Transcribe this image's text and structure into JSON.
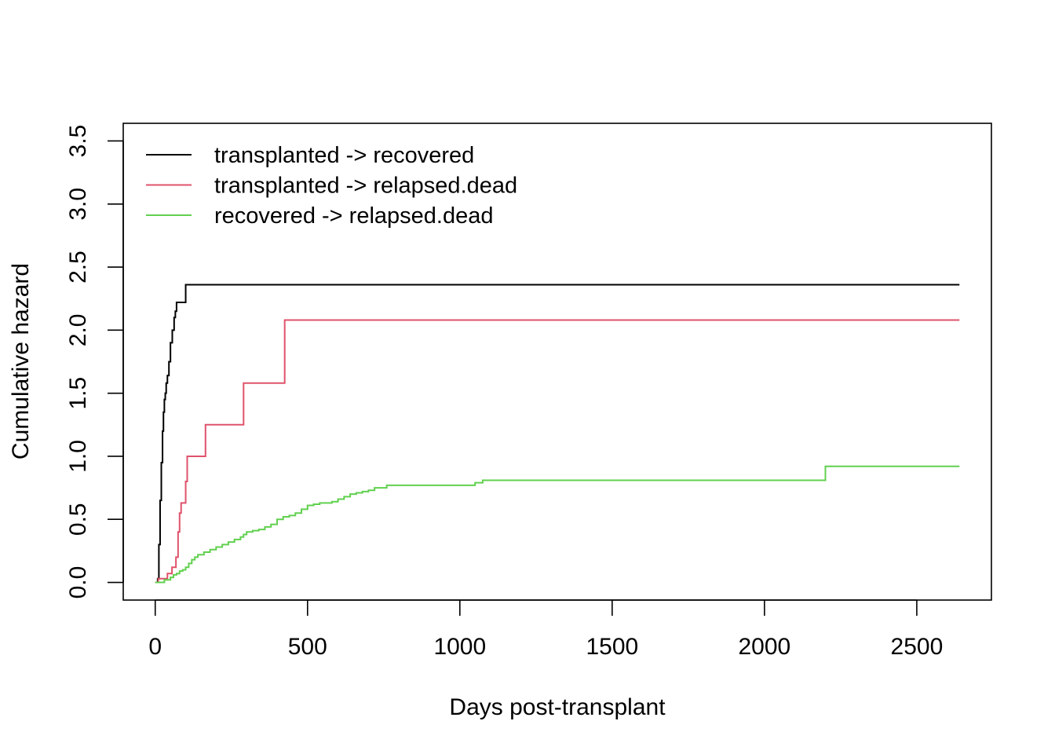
{
  "chart_data": {
    "type": "line",
    "step": true,
    "title": "",
    "xlabel": "Days post-transplant",
    "ylabel": "Cumulative hazard",
    "xlim": [
      -105,
      2745
    ],
    "ylim": [
      -0.14,
      3.64
    ],
    "xticks": [
      0,
      500,
      1000,
      1500,
      2000,
      2500
    ],
    "xtick_labels": [
      "0",
      "500",
      "1000",
      "1500",
      "2000",
      "2500"
    ],
    "yticks": [
      0.0,
      0.5,
      1.0,
      1.5,
      2.0,
      2.5,
      3.0,
      3.5
    ],
    "ytick_labels": [
      "0.0",
      "0.5",
      "1.0",
      "1.5",
      "2.0",
      "2.5",
      "3.0",
      "3.5"
    ],
    "grid": false,
    "legend_position": "top-left",
    "series": [
      {
        "name": "transplanted -> recovered",
        "color": "#000000",
        "x": [
          0,
          8,
          12,
          16,
          20,
          24,
          27,
          30,
          33,
          36,
          40,
          45,
          50,
          56,
          62,
          66,
          70,
          80,
          95,
          100,
          2640
        ],
        "y": [
          0,
          0.03,
          0.3,
          0.65,
          0.95,
          1.2,
          1.35,
          1.45,
          1.5,
          1.58,
          1.64,
          1.75,
          1.9,
          2.0,
          2.1,
          2.15,
          2.22,
          2.22,
          2.22,
          2.36,
          2.36
        ]
      },
      {
        "name": "transplanted -> relapsed.dead",
        "color": "#df536b",
        "x": [
          0,
          10,
          25,
          40,
          55,
          68,
          75,
          80,
          85,
          100,
          105,
          165,
          290,
          425,
          2640
        ],
        "y": [
          0,
          0.03,
          0.03,
          0.07,
          0.12,
          0.2,
          0.4,
          0.55,
          0.63,
          0.8,
          1.0,
          1.25,
          1.58,
          2.08,
          2.08
        ]
      },
      {
        "name": "recovered -> relapsed.dead",
        "color": "#61d04f",
        "x": [
          0,
          30,
          50,
          60,
          70,
          80,
          90,
          100,
          110,
          120,
          130,
          140,
          160,
          180,
          200,
          220,
          240,
          260,
          280,
          290,
          300,
          320,
          340,
          360,
          380,
          400,
          420,
          440,
          460,
          480,
          500,
          520,
          540,
          560,
          580,
          600,
          620,
          640,
          660,
          680,
          700,
          720,
          760,
          1050,
          1075,
          2200,
          2640
        ],
        "y": [
          0,
          0.02,
          0.04,
          0.06,
          0.07,
          0.09,
          0.1,
          0.12,
          0.15,
          0.18,
          0.2,
          0.22,
          0.24,
          0.26,
          0.28,
          0.3,
          0.32,
          0.34,
          0.36,
          0.38,
          0.4,
          0.41,
          0.42,
          0.44,
          0.46,
          0.5,
          0.52,
          0.53,
          0.55,
          0.58,
          0.61,
          0.62,
          0.63,
          0.63,
          0.64,
          0.66,
          0.68,
          0.7,
          0.71,
          0.72,
          0.73,
          0.75,
          0.77,
          0.79,
          0.81,
          0.92,
          0.92
        ]
      }
    ]
  }
}
